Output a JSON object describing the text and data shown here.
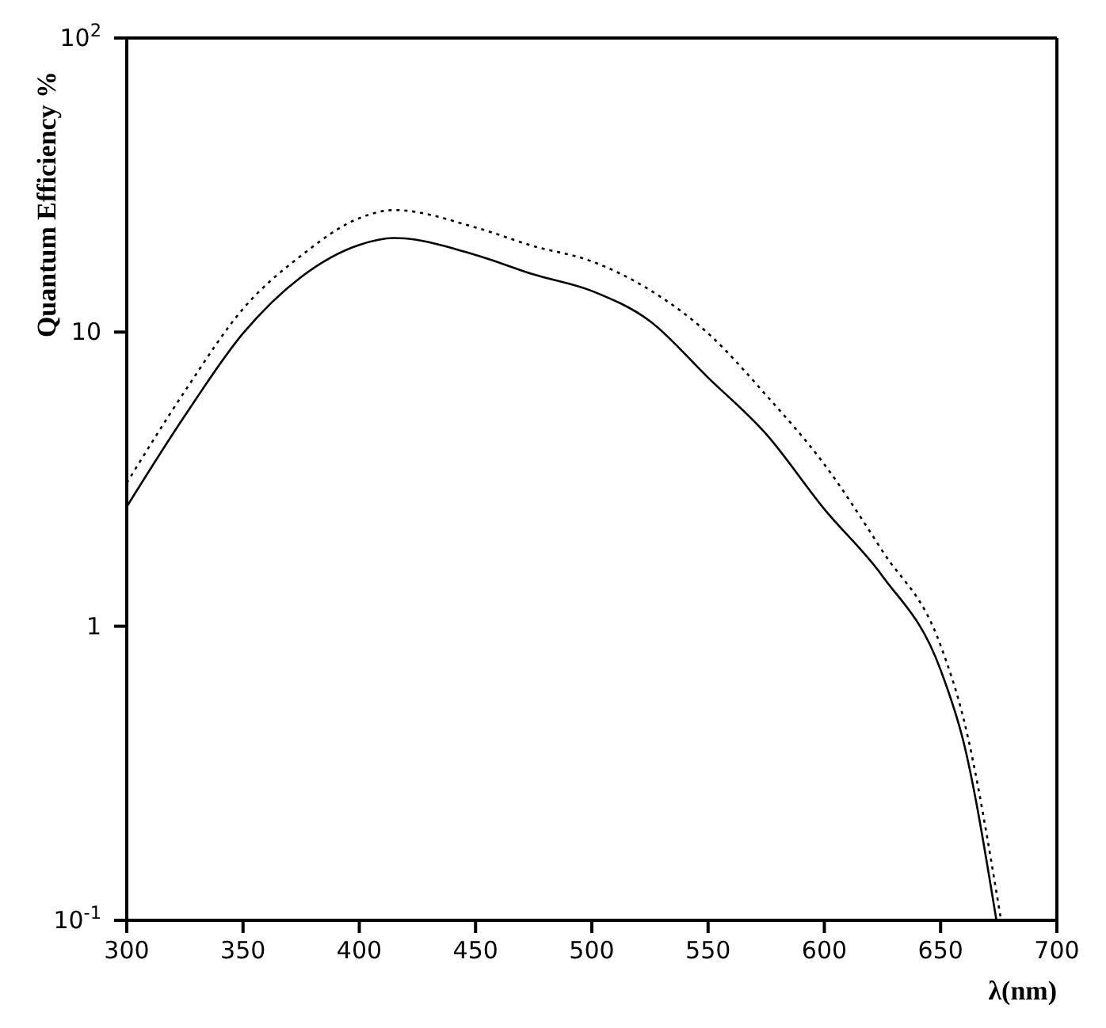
{
  "chart_data": {
    "type": "line",
    "xlabel": "λ(nm)",
    "ylabel": "Quantum Efficiency %",
    "log": "y",
    "marker": "none",
    "xlim": [
      300,
      700
    ],
    "xticks": [
      300,
      350,
      400,
      450,
      500,
      550,
      600,
      650,
      700
    ],
    "ylim": [
      0.1,
      100
    ],
    "yticks": [
      {
        "value": 0.1,
        "label": "10$^{-1}$"
      },
      1,
      10,
      {
        "value": 100,
        "label": "10$^{2}$"
      }
    ],
    "series": [
      {
        "color": "#000000",
        "line_style": "solid",
        "x": [
          300,
          325,
          350,
          375,
          400,
          415,
          450,
          475,
          500,
          525,
          550,
          575,
          600,
          625,
          650,
          660,
          674
        ],
        "values": [
          2.55,
          5.2,
          9.9,
          15.4,
          19.8,
          20.9,
          18.3,
          15.7,
          13.8,
          10.9,
          7.0,
          4.5,
          2.5,
          1.48,
          0.71,
          0.4,
          0.1
        ]
      },
      {
        "color": "#000000",
        "line_style": "dotted",
        "x": [
          300,
          325,
          350,
          375,
          400,
          415,
          450,
          475,
          500,
          525,
          550,
          575,
          600,
          625,
          650,
          660,
          676
        ],
        "values": [
          3.07,
          6.3,
          12.0,
          18.2,
          24.4,
          26.0,
          22.7,
          19.6,
          17.4,
          13.9,
          9.9,
          6.1,
          3.55,
          1.8,
          0.86,
          0.48,
          0.1
        ]
      }
    ]
  }
}
